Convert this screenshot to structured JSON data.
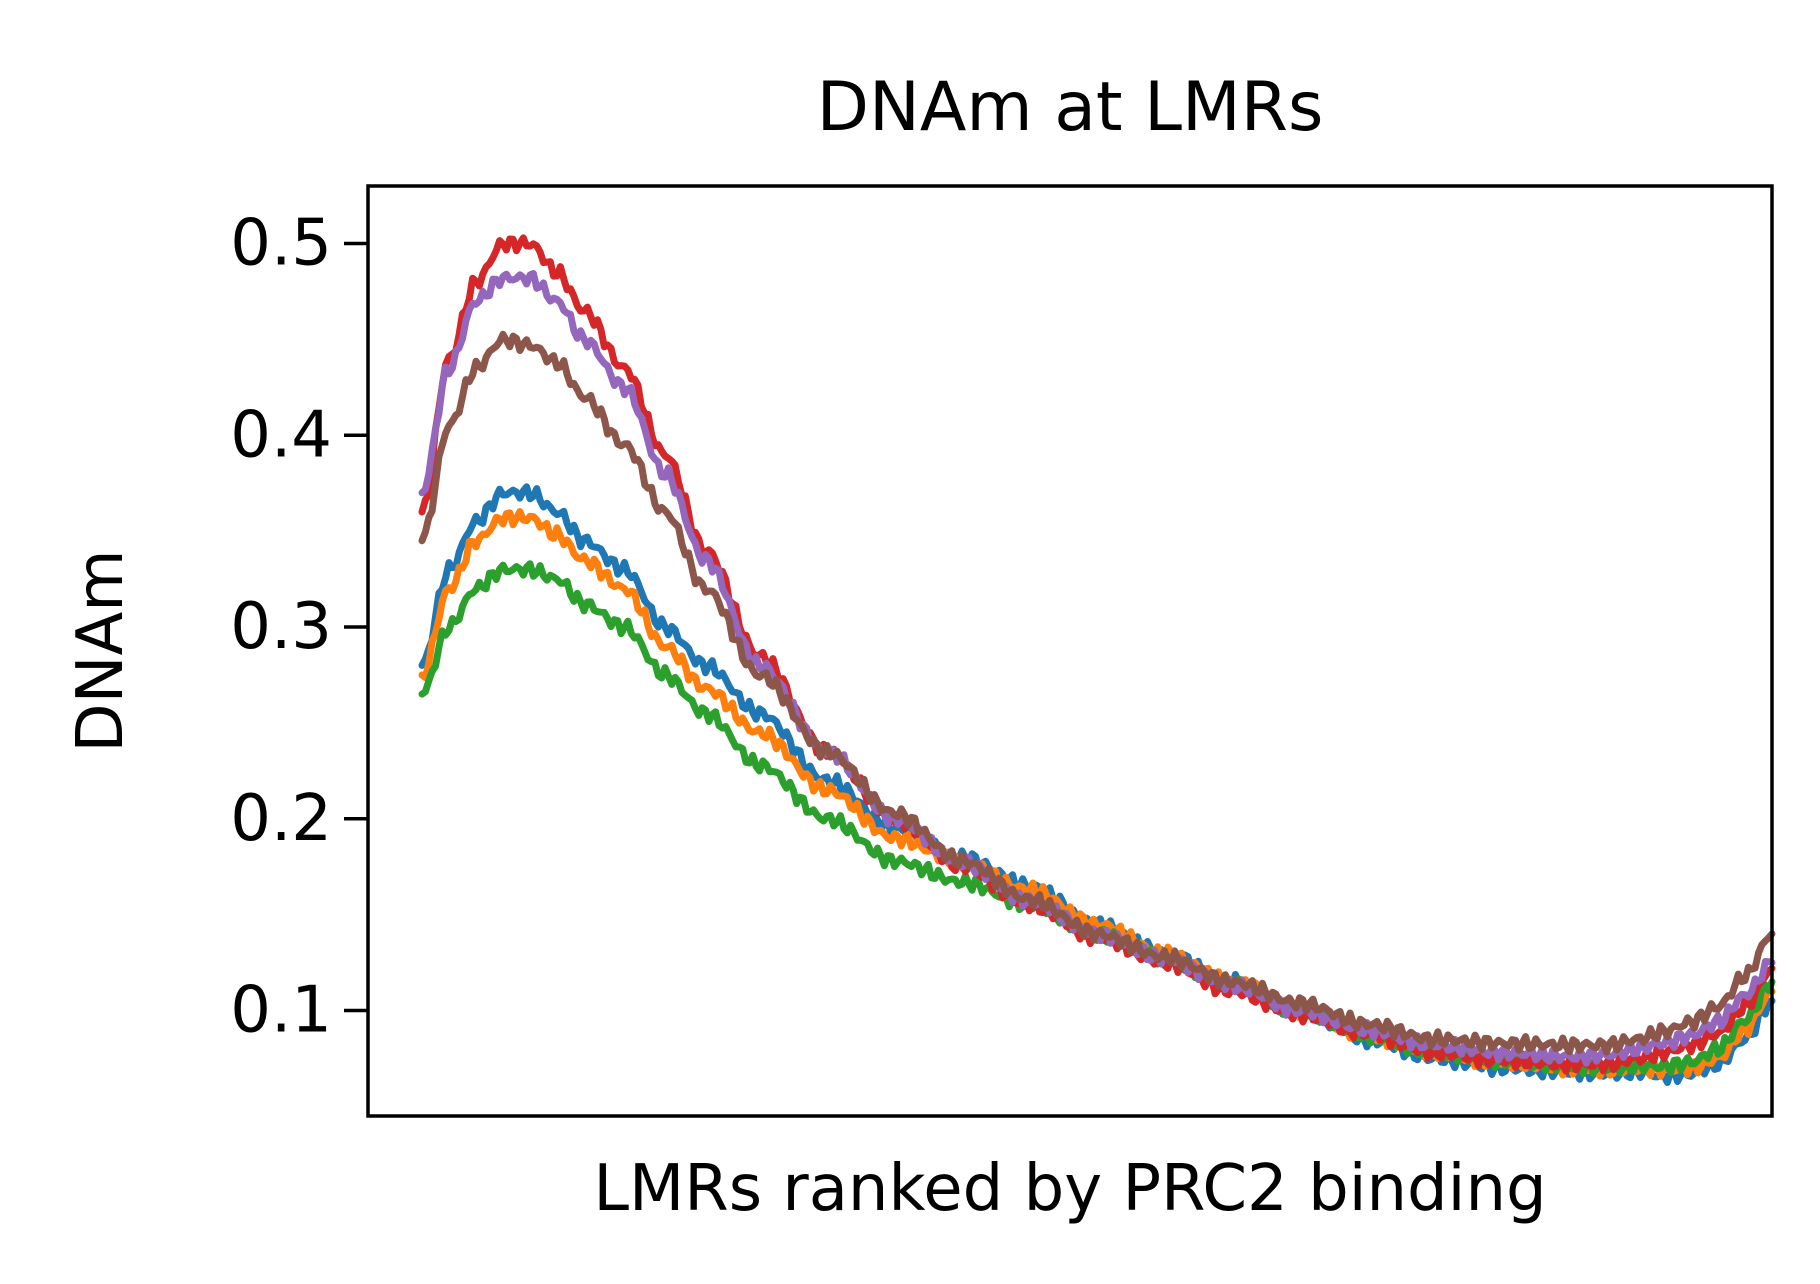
{
  "chart_data": {
    "type": "line",
    "title": "DNAm at LMRs",
    "xlabel": "LMRs ranked by PRC2 binding",
    "ylabel": "DNAm",
    "ylim": [
      0.045,
      0.53
    ],
    "xlim": [
      -4,
      100
    ],
    "yticks": [
      0.1,
      0.2,
      0.3,
      0.4,
      0.5
    ],
    "ytick_labels": [
      "0.1",
      "0.2",
      "0.3",
      "0.4",
      "0.5"
    ],
    "xticks_shown": false,
    "grid": false,
    "legend": "none",
    "x": [
      0,
      2,
      4,
      6,
      8,
      10,
      12,
      15,
      18,
      21,
      25,
      30,
      35,
      40,
      45,
      50,
      55,
      60,
      65,
      70,
      75,
      80,
      85,
      88,
      90,
      92,
      94,
      96,
      98,
      100
    ],
    "series": [
      {
        "color": "#1f77b4",
        "values": [
          0.28,
          0.33,
          0.355,
          0.37,
          0.37,
          0.36,
          0.345,
          0.33,
          0.3,
          0.28,
          0.255,
          0.22,
          0.195,
          0.18,
          0.165,
          0.145,
          0.13,
          0.115,
          0.1,
          0.085,
          0.075,
          0.07,
          0.068,
          0.067,
          0.068,
          0.066,
          0.067,
          0.072,
          0.085,
          0.105
        ]
      },
      {
        "color": "#ff7f0e",
        "values": [
          0.275,
          0.32,
          0.345,
          0.357,
          0.357,
          0.348,
          0.335,
          0.32,
          0.29,
          0.268,
          0.245,
          0.215,
          0.19,
          0.177,
          0.163,
          0.145,
          0.13,
          0.115,
          0.1,
          0.087,
          0.078,
          0.073,
          0.07,
          0.069,
          0.07,
          0.069,
          0.07,
          0.075,
          0.09,
          0.11
        ]
      },
      {
        "color": "#2ca02c",
        "values": [
          0.265,
          0.3,
          0.32,
          0.33,
          0.33,
          0.325,
          0.312,
          0.3,
          0.275,
          0.255,
          0.228,
          0.2,
          0.178,
          0.167,
          0.155,
          0.14,
          0.127,
          0.113,
          0.1,
          0.087,
          0.078,
          0.074,
          0.071,
          0.07,
          0.071,
          0.071,
          0.073,
          0.08,
          0.095,
          0.115
        ]
      },
      {
        "color": "#d62728",
        "values": [
          0.36,
          0.44,
          0.48,
          0.5,
          0.5,
          0.485,
          0.465,
          0.435,
          0.39,
          0.34,
          0.285,
          0.235,
          0.2,
          0.175,
          0.155,
          0.138,
          0.125,
          0.11,
          0.098,
          0.088,
          0.078,
          0.074,
          0.072,
          0.072,
          0.075,
          0.078,
          0.082,
          0.088,
          0.102,
          0.122
        ]
      },
      {
        "color": "#9467bd",
        "values": [
          0.37,
          0.435,
          0.47,
          0.482,
          0.482,
          0.47,
          0.45,
          0.425,
          0.38,
          0.335,
          0.28,
          0.235,
          0.2,
          0.177,
          0.157,
          0.14,
          0.127,
          0.113,
          0.1,
          0.09,
          0.082,
          0.078,
          0.076,
          0.077,
          0.08,
          0.083,
          0.087,
          0.094,
          0.108,
          0.125
        ]
      },
      {
        "color": "#8c564b",
        "values": [
          0.345,
          0.405,
          0.435,
          0.45,
          0.447,
          0.438,
          0.42,
          0.395,
          0.36,
          0.32,
          0.275,
          0.235,
          0.203,
          0.178,
          0.158,
          0.14,
          0.128,
          0.115,
          0.104,
          0.093,
          0.085,
          0.083,
          0.082,
          0.082,
          0.085,
          0.089,
          0.094,
          0.102,
          0.118,
          0.14
        ]
      }
    ]
  }
}
